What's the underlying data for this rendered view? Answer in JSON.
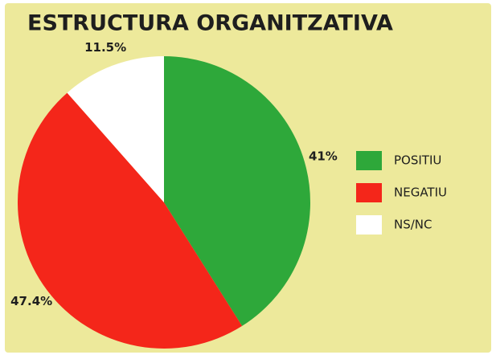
{
  "chart_data": {
    "type": "pie",
    "title": "ESTRUCTURA ORGANITZATIVA",
    "categories": [
      "POSITIU",
      "NEGATIU",
      "NS/NC"
    ],
    "values": [
      41,
      47.4,
      11.5
    ],
    "value_labels": [
      "41%",
      "47.4%",
      "11.5%"
    ],
    "colors": [
      "#2ea83a",
      "#f4261a",
      "#ffffff"
    ],
    "legend": "right"
  }
}
